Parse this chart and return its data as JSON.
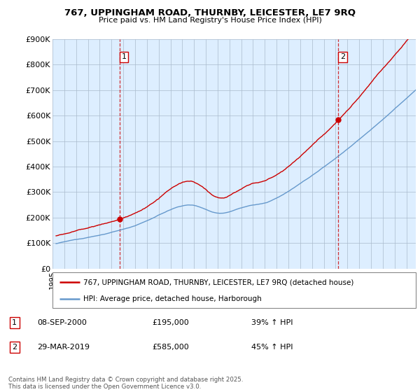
{
  "title": "767, UPPINGHAM ROAD, THURNBY, LEICESTER, LE7 9RQ",
  "subtitle": "Price paid vs. HM Land Registry's House Price Index (HPI)",
  "property_label": "767, UPPINGHAM ROAD, THURNBY, LEICESTER, LE7 9RQ (detached house)",
  "hpi_label": "HPI: Average price, detached house, Harborough",
  "annotation1": {
    "num": "1",
    "date": "08-SEP-2000",
    "price": "£195,000",
    "pct": "39% ↑ HPI"
  },
  "annotation2": {
    "num": "2",
    "date": "29-MAR-2019",
    "price": "£585,000",
    "pct": "45% ↑ HPI"
  },
  "footer": "Contains HM Land Registry data © Crown copyright and database right 2025.\nThis data is licensed under the Open Government Licence v3.0.",
  "ylim": [
    0,
    900000
  ],
  "yticks": [
    0,
    100000,
    200000,
    300000,
    400000,
    500000,
    600000,
    700000,
    800000,
    900000
  ],
  "ytick_labels": [
    "£0",
    "£100K",
    "£200K",
    "£300K",
    "£400K",
    "£500K",
    "£600K",
    "£700K",
    "£800K",
    "£900K"
  ],
  "property_color": "#cc0000",
  "hpi_color": "#6699cc",
  "vline_color": "#cc0000",
  "background_color": "#ffffff",
  "chart_bg_color": "#ddeeff",
  "grid_color": "#aabbcc",
  "marker1_x": 2000.69,
  "marker1_y": 195000,
  "marker2_x": 2019.23,
  "marker2_y": 585000,
  "xlim_left": 1995.3,
  "xlim_right": 2025.8
}
